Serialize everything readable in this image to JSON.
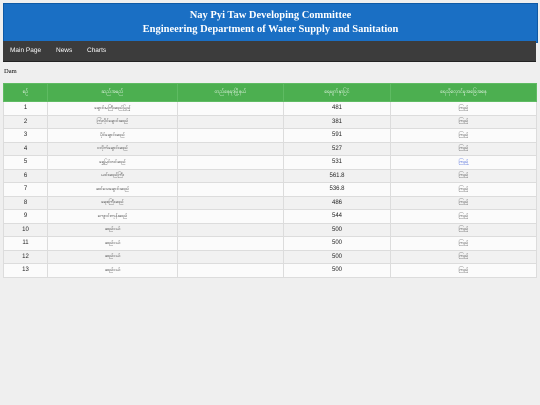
{
  "header": {
    "line1": "Nay Pyi Taw Developing Committee",
    "line2": "Engineering Department of Water Supply and Sanitation"
  },
  "nav": {
    "items": [
      {
        "label": "Main Page"
      },
      {
        "label": "News"
      },
      {
        "label": "Charts"
      }
    ]
  },
  "section_title": "Dam",
  "table": {
    "headers": [
      "စဉ်",
      "ဆည်အမည်",
      "တည်နေရာမြို့နယ်",
      "ရေမျက်နှာပြင်",
      "ရေသိုလှောင်မှုအခြေအနေ"
    ],
    "rows": [
      {
        "no": "1",
        "name": "ချောင်းမကြီးဆည်ပြည့်",
        "location": "",
        "level": "481",
        "status": "ကြည့်"
      },
      {
        "no": "2",
        "name": "ကြံလိုင်ချောင်းဆည်",
        "location": "",
        "level": "381",
        "status": "ကြည့်"
      },
      {
        "no": "3",
        "name": "ပိုင်ချောင်းဆည်",
        "location": "",
        "level": "591",
        "status": "ကြည့်"
      },
      {
        "no": "4",
        "name": "ငလိုက်ချောင်းဆည်",
        "location": "",
        "level": "527",
        "status": "ကြည့်"
      },
      {
        "no": "5",
        "name": "ရွှေမြင်တင်ဆည်",
        "location": "",
        "level": "531",
        "status": "ကြည့်",
        "status_link": true
      },
      {
        "no": "6",
        "name": "ယင်းဆည်ကြီး",
        "location": "",
        "level": "561.8",
        "status": "ကြည့်"
      },
      {
        "no": "7",
        "name": "ဆင်သေချောင်းဆည်",
        "location": "",
        "level": "536.8",
        "status": "ကြည့်"
      },
      {
        "no": "8",
        "name": "ရေစကြီးဆည်",
        "location": "",
        "level": "486",
        "status": "ကြည့်"
      },
      {
        "no": "9",
        "name": "ကျောင်းကုန်းဆည်",
        "location": "",
        "level": "544",
        "status": "ကြည့်"
      },
      {
        "no": "10",
        "name": "ဆည်ငယ်",
        "location": "",
        "level": "500",
        "status": "ကြည့်"
      },
      {
        "no": "11",
        "name": "ဆည်ငယ်",
        "location": "",
        "level": "500",
        "status": "ကြည့်"
      },
      {
        "no": "12",
        "name": "ဆည်ငယ်",
        "location": "",
        "level": "500",
        "status": "ကြည့်"
      },
      {
        "no": "13",
        "name": "ဆည်ငယ်",
        "location": "",
        "level": "500",
        "status": "ကြည့်"
      }
    ]
  }
}
